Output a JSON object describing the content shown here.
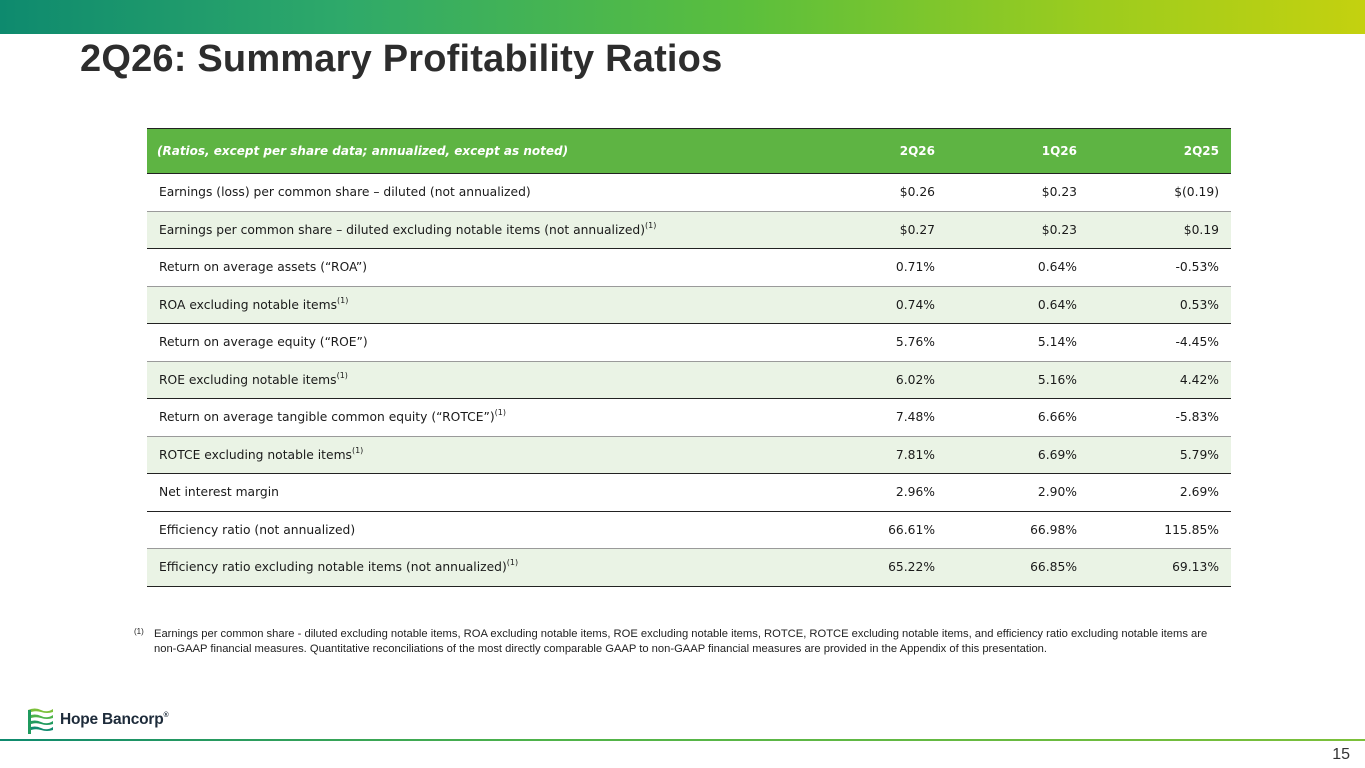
{
  "slide": {
    "title": "2Q26: Summary Profitability Ratios",
    "page_number": "15"
  },
  "table": {
    "header": {
      "label": "(Ratios, except per share data; annualized, except as noted)",
      "col1": "2Q26",
      "col2": "1Q26",
      "col3": "2Q25"
    },
    "rows": [
      {
        "label": "Earnings (loss) per common share – diluted (not annualized)",
        "sup": "",
        "v1": "$0.26",
        "v2": "$0.23",
        "v3": "$(0.19)"
      },
      {
        "label": "Earnings per common share – diluted excluding notable items (not annualized)",
        "sup": "(1)",
        "v1": "$0.27",
        "v2": "$0.23",
        "v3": "$0.19"
      },
      {
        "label": "Return on average assets (“ROA”)",
        "sup": "",
        "v1": "0.71%",
        "v2": "0.64%",
        "v3": "-0.53%"
      },
      {
        "label": "ROA excluding notable items",
        "sup": "(1)",
        "v1": "0.74%",
        "v2": "0.64%",
        "v3": "0.53%"
      },
      {
        "label": "Return on average equity (“ROE”)",
        "sup": "",
        "v1": "5.76%",
        "v2": "5.14%",
        "v3": "-4.45%"
      },
      {
        "label": "ROE excluding notable items",
        "sup": "(1)",
        "v1": "6.02%",
        "v2": "5.16%",
        "v3": "4.42%"
      },
      {
        "label": "Return on average tangible common equity (“ROTCE”)",
        "sup": "(1)",
        "v1": "7.48%",
        "v2": "6.66%",
        "v3": "-5.83%"
      },
      {
        "label": "ROTCE excluding notable items",
        "sup": "(1)",
        "v1": "7.81%",
        "v2": "6.69%",
        "v3": "5.79%"
      },
      {
        "label": "Net interest margin",
        "sup": "",
        "v1": "2.96%",
        "v2": "2.90%",
        "v3": "2.69%"
      },
      {
        "label": "Efficiency ratio (not annualized)",
        "sup": "",
        "v1": "66.61%",
        "v2": "66.98%",
        "v3": "115.85%"
      },
      {
        "label": "Efficiency ratio excluding notable items (not annualized)",
        "sup": "(1)",
        "v1": "65.22%",
        "v2": "66.85%",
        "v3": "69.13%"
      }
    ]
  },
  "footnote": {
    "mark": "(1)",
    "text": "Earnings per common share - diluted excluding notable items, ROA excluding notable items, ROE excluding notable items, ROTCE, ROTCE excluding notable items, and efficiency ratio excluding notable items are non-GAAP financial measures. Quantitative reconciliations of the most directly comparable GAAP to non-GAAP financial measures are provided in the Appendix of this presentation."
  },
  "logo": {
    "name": "Hope Bancorp",
    "registered": "®",
    "icon": "hope-bancorp-flag-icon"
  },
  "colors": {
    "header_green": "#5eb443",
    "row_shade": "#eaf3e5",
    "title_text": "#2d2d2d",
    "logo_navy": "#1d2b3a"
  }
}
